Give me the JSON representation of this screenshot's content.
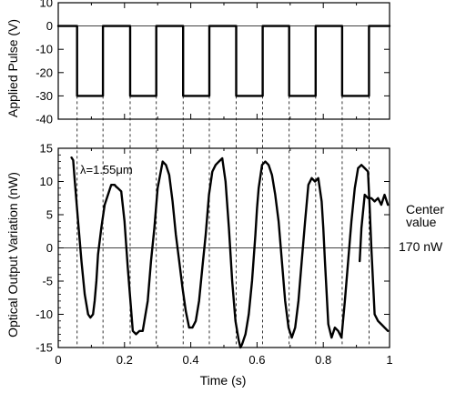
{
  "chart_data": [
    {
      "type": "line",
      "ylabel": "Applied Pulse (V)",
      "ylim": [
        -40,
        10
      ],
      "xlim": [
        0,
        1
      ],
      "yticks": [
        10,
        0,
        -10,
        -20,
        -30,
        -40
      ],
      "grid": false,
      "series": [
        {
          "x": [
            0.0,
            0.057,
            0.057,
            0.135,
            0.135,
            0.217,
            0.217,
            0.296,
            0.296,
            0.377,
            0.377,
            0.456,
            0.456,
            0.537,
            0.537,
            0.617,
            0.617,
            0.697,
            0.697,
            0.777,
            0.777,
            0.857,
            0.857,
            0.938,
            0.938,
            1.0
          ],
          "y": [
            0,
            0,
            -30,
            -30,
            0,
            0,
            -30,
            -30,
            0,
            0,
            -30,
            -30,
            0,
            0,
            -30,
            -30,
            0,
            0,
            -30,
            -30,
            0,
            0,
            -30,
            -30,
            0,
            0
          ]
        }
      ]
    },
    {
      "type": "line",
      "xlabel": "Time (s)",
      "ylabel": "Optical Output Variation (nW)",
      "xlim": [
        0,
        1
      ],
      "ylim": [
        -15,
        15
      ],
      "xticks": [
        "0",
        "0.2",
        "0.4",
        "0.6",
        "0.8",
        "1"
      ],
      "yticks": [
        "15",
        "10",
        "5",
        "0",
        "-5",
        "-10",
        "-15"
      ],
      "grid": false,
      "annotations": [
        "λ=1.55μm",
        "Center",
        "value",
        "170 nW"
      ],
      "series": [
        {
          "x": [
            0.04,
            0.045,
            0.05,
            0.06,
            0.07,
            0.08,
            0.09,
            0.097,
            0.105,
            0.11,
            0.115,
            0.12,
            0.13,
            0.14,
            0.16,
            0.17,
            0.175,
            0.18,
            0.19,
            0.2,
            0.21,
            0.225,
            0.235,
            0.245,
            0.255,
            0.27,
            0.28,
            0.29,
            0.3,
            0.315,
            0.325,
            0.335,
            0.345,
            0.355,
            0.365,
            0.375,
            0.385,
            0.395,
            0.405,
            0.415,
            0.425,
            0.435,
            0.445,
            0.455,
            0.465,
            0.475,
            0.485,
            0.495,
            0.505,
            0.515,
            0.525,
            0.535,
            0.545,
            0.55,
            0.555,
            0.565,
            0.575,
            0.585,
            0.595,
            0.6,
            0.605,
            0.615,
            0.625,
            0.635,
            0.645,
            0.655,
            0.665,
            0.675,
            0.685,
            0.695,
            0.705,
            0.715,
            0.725,
            0.735,
            0.745,
            0.755,
            0.765,
            0.775,
            0.785,
            0.795,
            0.8,
            0.805,
            0.815,
            0.825,
            0.835,
            0.845,
            0.855,
            0.865,
            0.875,
            0.885,
            0.895,
            0.905,
            0.915,
            0.925,
            0.935,
            0.94,
            0.945,
            0.955,
            0.965,
            0.975,
            0.985,
            0.995
          ],
          "y": [
            13.6,
            13.2,
            10,
            4,
            -2,
            -7,
            -10,
            -10.5,
            -10,
            -8,
            -5,
            -1,
            3,
            6.5,
            9.5,
            9.5,
            9.2,
            9,
            8.5,
            4,
            -3,
            -12.5,
            -13,
            -12.5,
            -12.5,
            -8,
            -2,
            3,
            9,
            13,
            12.5,
            11,
            7,
            2,
            -2,
            -6,
            -9.5,
            -12,
            -12,
            -11,
            -8,
            -3,
            2,
            8,
            11.5,
            12.5,
            13,
            13.5,
            10,
            3,
            -5,
            -11,
            -14,
            -15,
            -14.5,
            -13,
            -10,
            -5,
            2,
            6,
            9,
            12.5,
            13,
            12.5,
            11,
            8,
            4,
            -2,
            -8,
            -12,
            -13.5,
            -12,
            -8,
            -2,
            4,
            9.5,
            10.5,
            10,
            10.5,
            7,
            3,
            -2,
            -11.5,
            -13.5,
            -12,
            -12.5,
            -13.5,
            -8,
            -2,
            4,
            9,
            12,
            12.5,
            12,
            11.5,
            6,
            0,
            -10,
            -11,
            -11.5,
            -12,
            -12.5
          ]
        },
        {
          "x": [
            0.91,
            0.915,
            0.925,
            0.935,
            0.945,
            0.955,
            0.965,
            0.975,
            0.985,
            0.995
          ],
          "y": [
            -2,
            3,
            8,
            7.5,
            7.5,
            7,
            7.5,
            6.5,
            8,
            6.5
          ]
        }
      ]
    }
  ]
}
